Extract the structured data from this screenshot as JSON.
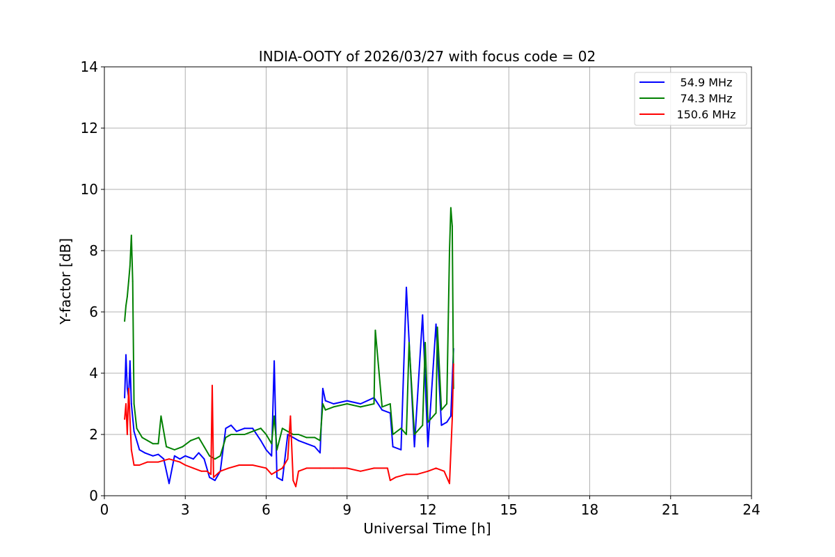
{
  "chart_data": {
    "type": "line",
    "title": "INDIA-OOTY of 2026/03/27 with focus code = 02",
    "xlabel": "Universal Time [h]",
    "ylabel": "Y-factor [dB]",
    "xlim": [
      0,
      24
    ],
    "ylim": [
      0,
      14
    ],
    "xticks": [
      0,
      3,
      6,
      9,
      12,
      15,
      18,
      21,
      24
    ],
    "yticks": [
      0,
      2,
      4,
      6,
      8,
      10,
      12,
      14
    ],
    "grid": true,
    "legend_position": "top-right",
    "series": [
      {
        "name": "54.9 MHz",
        "color": "#0000ff",
        "x": [
          0.75,
          0.8,
          0.85,
          0.9,
          0.95,
          1.0,
          1.1,
          1.3,
          1.5,
          1.8,
          2.0,
          2.2,
          2.4,
          2.6,
          2.8,
          3.0,
          3.3,
          3.5,
          3.7,
          3.9,
          4.1,
          4.3,
          4.5,
          4.7,
          4.9,
          5.2,
          5.5,
          5.8,
          6.0,
          6.2,
          6.3,
          6.4,
          6.6,
          6.8,
          7.0,
          7.2,
          7.5,
          7.8,
          8.0,
          8.1,
          8.2,
          8.5,
          9.0,
          9.5,
          10.0,
          10.3,
          10.6,
          10.7,
          11.0,
          11.2,
          11.5,
          11.8,
          12.0,
          12.3,
          12.5,
          12.7,
          12.85,
          12.95
        ],
        "y": [
          3.2,
          4.6,
          3.5,
          3.2,
          4.4,
          3.0,
          2.1,
          1.5,
          1.4,
          1.3,
          1.35,
          1.2,
          0.4,
          1.3,
          1.2,
          1.3,
          1.2,
          1.4,
          1.2,
          0.6,
          0.5,
          0.8,
          2.2,
          2.3,
          2.1,
          2.2,
          2.2,
          1.8,
          1.5,
          1.3,
          4.4,
          0.6,
          0.5,
          2.0,
          1.9,
          1.8,
          1.7,
          1.6,
          1.4,
          3.5,
          3.1,
          3.0,
          3.1,
          3.0,
          3.2,
          2.8,
          2.7,
          1.6,
          1.5,
          6.8,
          1.6,
          5.9,
          1.6,
          5.6,
          2.3,
          2.4,
          2.6,
          4.8
        ]
      },
      {
        "name": "74.3 MHz",
        "color": "#008000",
        "x": [
          0.75,
          0.8,
          0.85,
          0.9,
          0.95,
          1.0,
          1.05,
          1.1,
          1.2,
          1.4,
          1.6,
          1.8,
          2.0,
          2.1,
          2.3,
          2.6,
          2.9,
          3.2,
          3.5,
          3.7,
          3.9,
          4.1,
          4.3,
          4.5,
          4.7,
          4.9,
          5.2,
          5.5,
          5.8,
          6.0,
          6.2,
          6.3,
          6.4,
          6.6,
          6.8,
          7.0,
          7.2,
          7.5,
          7.8,
          8.0,
          8.1,
          8.2,
          8.5,
          9.0,
          9.5,
          10.0,
          10.05,
          10.3,
          10.6,
          10.7,
          11.0,
          11.2,
          11.3,
          11.5,
          11.8,
          11.9,
          12.0,
          12.3,
          12.35,
          12.5,
          12.7,
          12.8,
          12.85,
          12.9,
          12.95
        ],
        "y": [
          5.7,
          6.2,
          6.5,
          7.0,
          7.5,
          8.5,
          7.0,
          3.0,
          2.2,
          1.9,
          1.8,
          1.7,
          1.7,
          2.6,
          1.6,
          1.5,
          1.6,
          1.8,
          1.9,
          1.6,
          1.3,
          1.2,
          1.3,
          1.9,
          2.0,
          2.0,
          2.0,
          2.1,
          2.2,
          2.0,
          1.7,
          2.6,
          1.5,
          2.2,
          2.1,
          2.0,
          2.0,
          1.9,
          1.9,
          1.8,
          3.0,
          2.8,
          2.9,
          3.0,
          2.9,
          3.0,
          5.4,
          2.9,
          3.0,
          2.0,
          2.2,
          2.0,
          5.0,
          2.0,
          2.3,
          5.0,
          2.4,
          2.7,
          5.5,
          2.8,
          3.0,
          8.0,
          9.4,
          8.8,
          3.5
        ]
      },
      {
        "name": "150.6 MHz",
        "color": "#ff0000",
        "x": [
          0.75,
          0.8,
          0.85,
          0.9,
          0.95,
          1.0,
          1.1,
          1.3,
          1.6,
          2.0,
          2.4,
          2.8,
          3.0,
          3.3,
          3.6,
          3.8,
          3.95,
          4.0,
          4.05,
          4.3,
          4.6,
          5.0,
          5.5,
          6.0,
          6.2,
          6.4,
          6.6,
          6.8,
          6.9,
          7.0,
          7.1,
          7.2,
          7.5,
          8.0,
          8.5,
          9.0,
          9.5,
          10.0,
          10.5,
          10.6,
          10.8,
          11.2,
          11.6,
          12.0,
          12.3,
          12.6,
          12.8,
          12.9,
          12.95
        ],
        "y": [
          2.5,
          3.0,
          2.0,
          3.5,
          2.5,
          1.5,
          1.0,
          1.0,
          1.1,
          1.1,
          1.2,
          1.1,
          1.0,
          0.9,
          0.8,
          0.8,
          0.7,
          3.6,
          0.6,
          0.8,
          0.9,
          1.0,
          1.0,
          0.9,
          0.7,
          0.8,
          0.9,
          1.2,
          2.6,
          0.5,
          0.3,
          0.8,
          0.9,
          0.9,
          0.9,
          0.9,
          0.8,
          0.9,
          0.9,
          0.5,
          0.6,
          0.7,
          0.7,
          0.8,
          0.9,
          0.8,
          0.4,
          2.5,
          4.3
        ]
      }
    ]
  }
}
